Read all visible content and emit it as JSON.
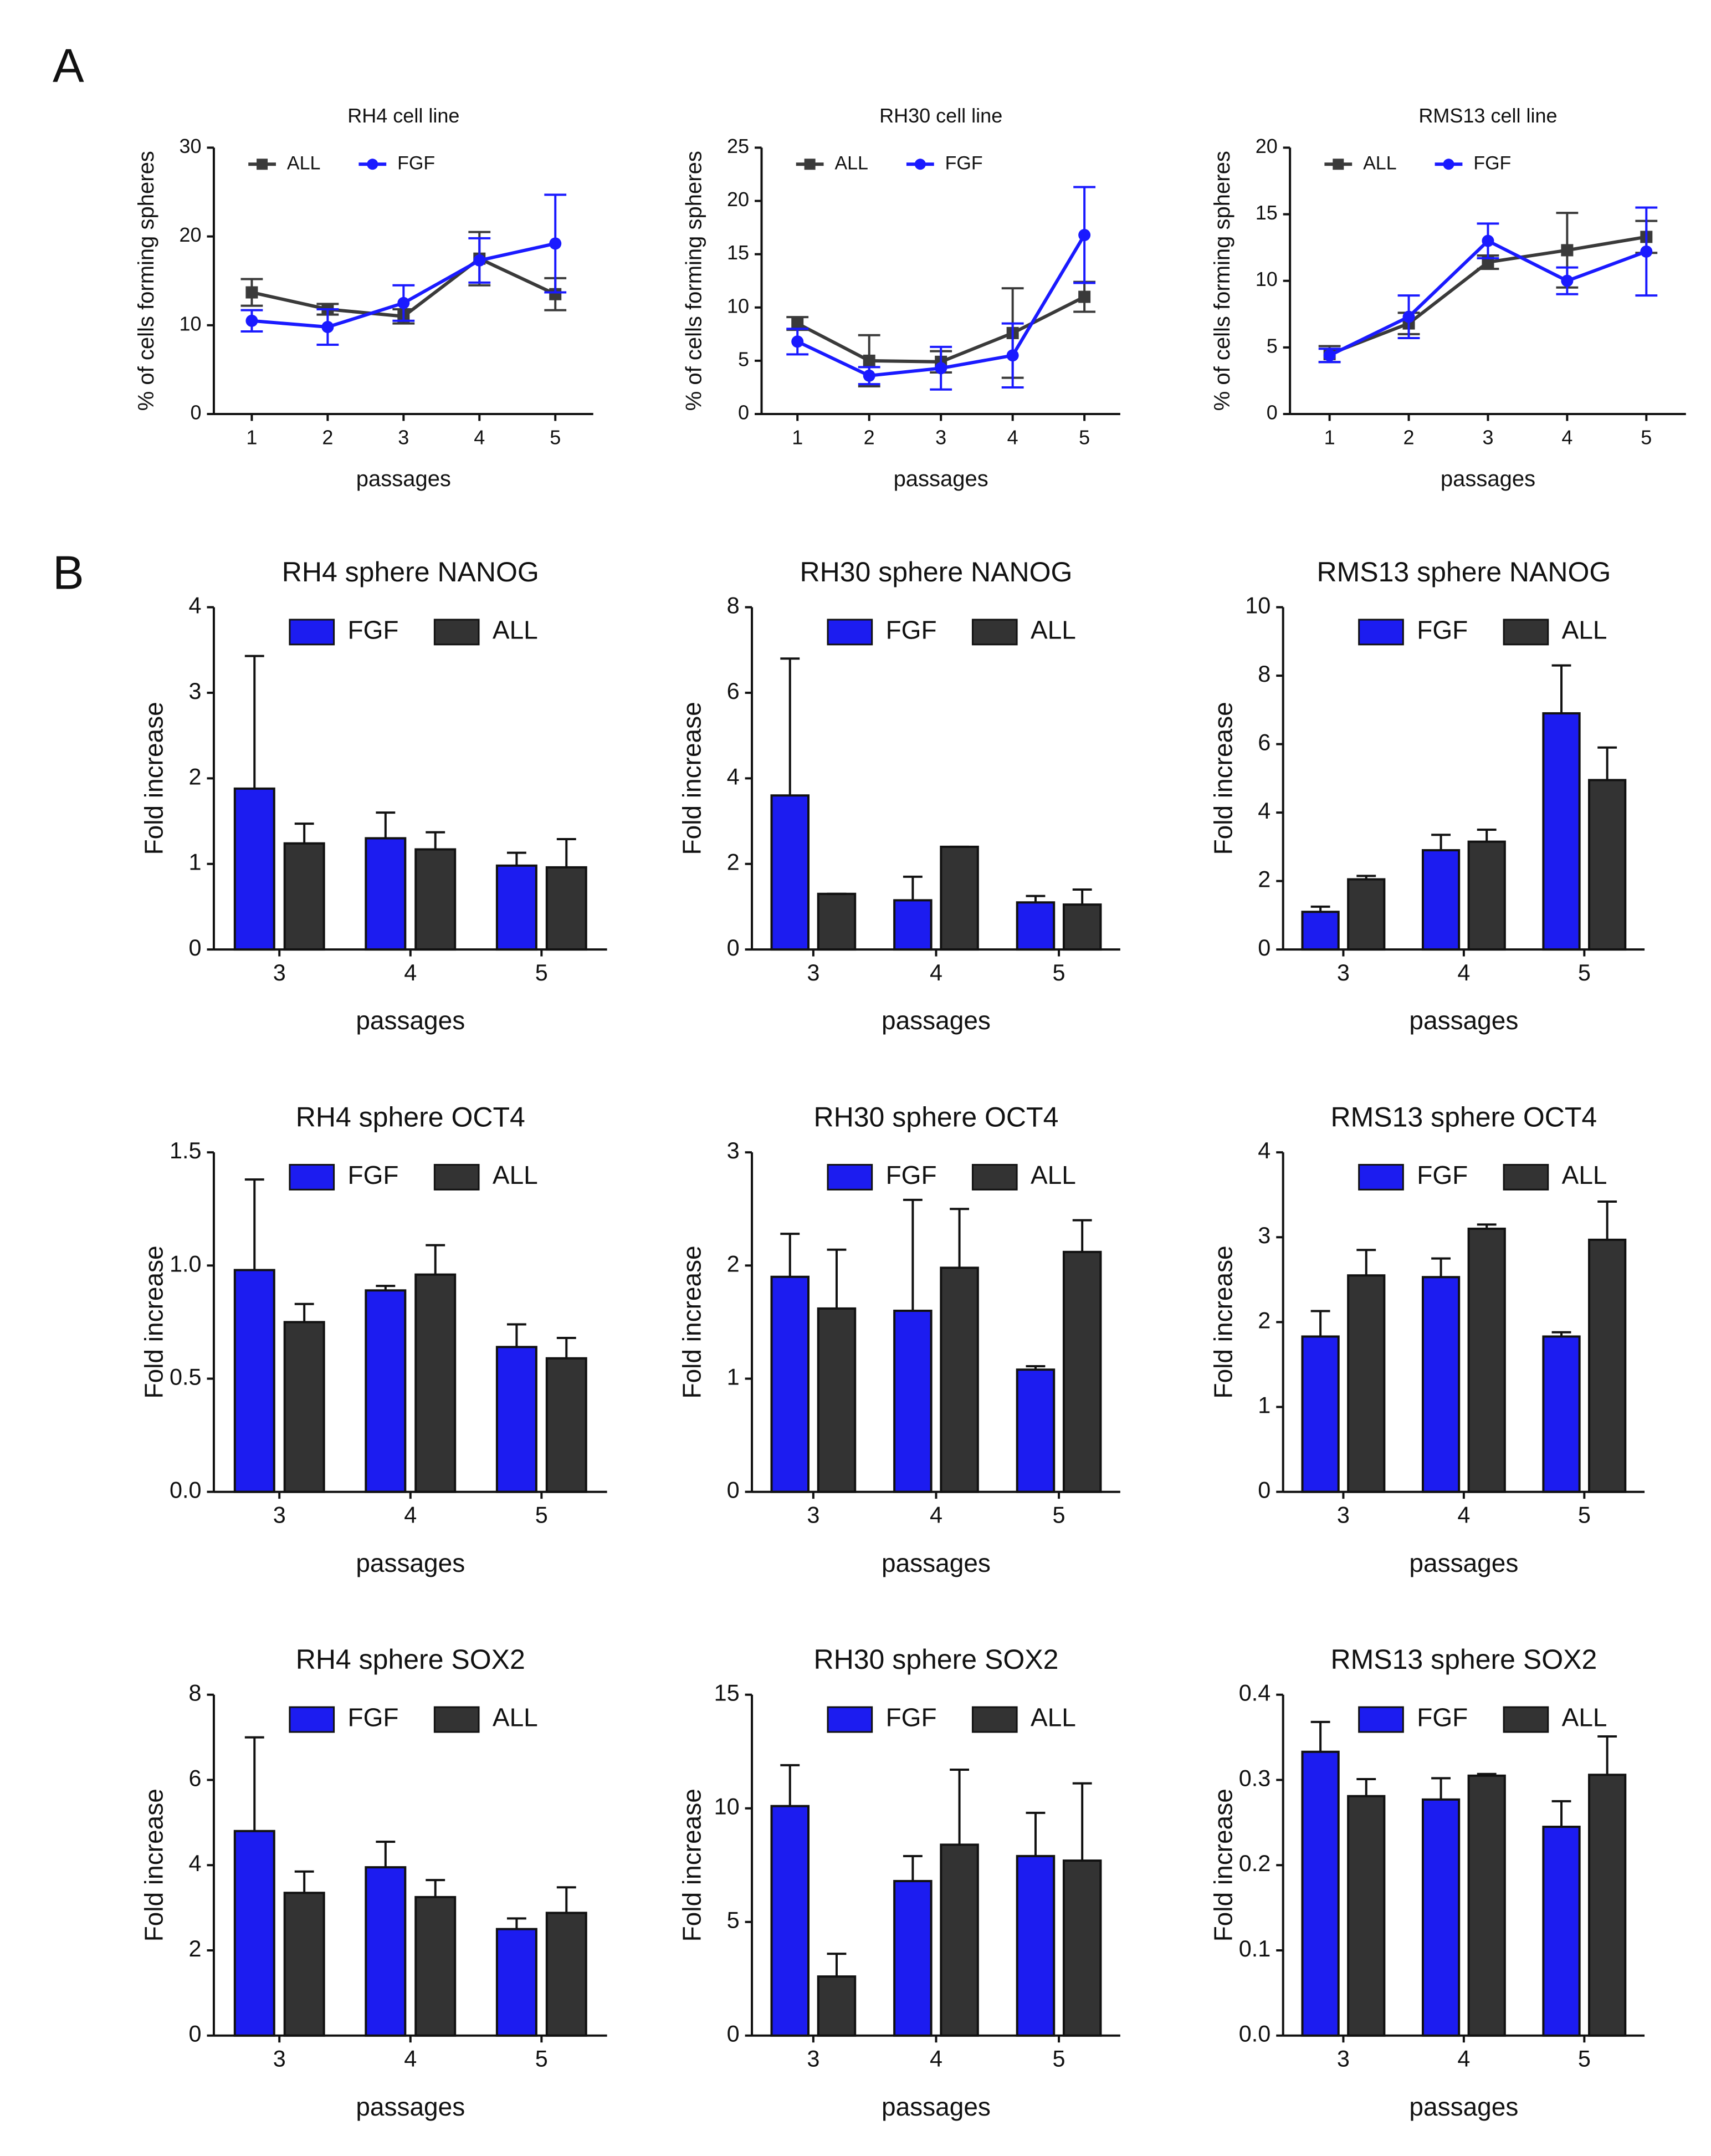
{
  "panel_labels": [
    "A",
    "B"
  ],
  "chart_data": [
    {
      "type": "line",
      "title": "RH4 cell line",
      "xlabel": "passages",
      "ylabel": "% of cells forming spheres",
      "categories": [
        "1",
        "2",
        "3",
        "4",
        "5"
      ],
      "ylim": [
        0,
        30
      ],
      "yticks": [
        0,
        10,
        20,
        30
      ],
      "series": [
        {
          "name": "ALL",
          "color": "#3a3a3a",
          "marker": "square",
          "values": [
            13.7,
            11.8,
            11,
            17.5,
            13.5
          ],
          "errors": [
            1.5,
            0.6,
            0.8,
            3,
            1.8
          ]
        },
        {
          "name": "FGF",
          "color": "#1a1aff",
          "marker": "circle",
          "values": [
            10.5,
            9.8,
            12.5,
            17.3,
            19.2
          ],
          "errors": [
            1.2,
            2,
            2,
            2.5,
            5.5
          ]
        }
      ]
    },
    {
      "type": "line",
      "title": "RH30 cell line",
      "xlabel": "passages",
      "ylabel": "% of cells forming spheres",
      "categories": [
        "1",
        "2",
        "3",
        "4",
        "5"
      ],
      "ylim": [
        0,
        25
      ],
      "yticks": [
        0,
        5,
        10,
        15,
        20,
        25
      ],
      "series": [
        {
          "name": "ALL",
          "color": "#3a3a3a",
          "marker": "square",
          "values": [
            8.5,
            5,
            4.9,
            7.6,
            11
          ],
          "errors": [
            0.6,
            2.4,
            1,
            4.2,
            1.4
          ]
        },
        {
          "name": "FGF",
          "color": "#1a1aff",
          "marker": "circle",
          "values": [
            6.8,
            3.6,
            4.3,
            5.5,
            16.8
          ],
          "errors": [
            1.2,
            0.8,
            2,
            3,
            4.5
          ]
        }
      ]
    },
    {
      "type": "line",
      "title": "RMS13 cell line",
      "xlabel": "passages",
      "ylabel": "% of cells forming spheres",
      "categories": [
        "1",
        "2",
        "3",
        "4",
        "5"
      ],
      "ylim": [
        0,
        20
      ],
      "yticks": [
        0,
        5,
        10,
        15,
        20
      ],
      "series": [
        {
          "name": "ALL",
          "color": "#3a3a3a",
          "marker": "square",
          "values": [
            4.5,
            6.8,
            11.4,
            12.3,
            13.3
          ],
          "errors": [
            0.6,
            0.8,
            0.5,
            2.8,
            1.2
          ]
        },
        {
          "name": "FGF",
          "color": "#1a1aff",
          "marker": "circle",
          "values": [
            4.4,
            7.3,
            13,
            10,
            12.2
          ],
          "errors": [
            0.5,
            1.6,
            1.3,
            1,
            3.3
          ]
        }
      ]
    },
    {
      "type": "bar",
      "title": "RH4 sphere NANOG",
      "xlabel": "passages",
      "ylabel": "Fold increase",
      "categories": [
        "3",
        "4",
        "5"
      ],
      "ylim": [
        0,
        4
      ],
      "yticks": [
        0,
        1,
        2,
        3,
        4
      ],
      "series": [
        {
          "name": "FGF",
          "color": "#1c1cf0",
          "values": [
            1.88,
            1.3,
            0.98
          ],
          "errors": [
            1.55,
            0.3,
            0.15
          ]
        },
        {
          "name": "ALL",
          "color": "#333333",
          "values": [
            1.24,
            1.17,
            0.96
          ],
          "errors": [
            0.23,
            0.2,
            0.33
          ]
        }
      ]
    },
    {
      "type": "bar",
      "title": "RH30 sphere NANOG",
      "xlabel": "passages",
      "ylabel": "Fold increase",
      "categories": [
        "3",
        "4",
        "5"
      ],
      "ylim": [
        0,
        8
      ],
      "yticks": [
        0,
        2,
        4,
        6,
        8
      ],
      "series": [
        {
          "name": "FGF",
          "color": "#1c1cf0",
          "values": [
            3.6,
            1.15,
            1.1
          ],
          "errors": [
            3.2,
            0.55,
            0.15
          ]
        },
        {
          "name": "ALL",
          "color": "#333333",
          "values": [
            1.3,
            2.4,
            1.05
          ],
          "errors": [
            0,
            0,
            0.35
          ]
        }
      ]
    },
    {
      "type": "bar",
      "title": "RMS13 sphere NANOG",
      "xlabel": "passages",
      "ylabel": "Fold increase",
      "categories": [
        "3",
        "4",
        "5"
      ],
      "ylim": [
        0,
        10
      ],
      "yticks": [
        0,
        2,
        4,
        6,
        8,
        10
      ],
      "series": [
        {
          "name": "FGF",
          "color": "#1c1cf0",
          "values": [
            1.1,
            2.9,
            6.9
          ],
          "errors": [
            0.15,
            0.45,
            1.4
          ]
        },
        {
          "name": "ALL",
          "color": "#333333",
          "values": [
            2.05,
            3.15,
            4.95
          ],
          "errors": [
            0.1,
            0.35,
            0.95
          ]
        }
      ]
    },
    {
      "type": "bar",
      "title": "RH4 sphere OCT4",
      "xlabel": "passages",
      "ylabel": "Fold increase",
      "categories": [
        "3",
        "4",
        "5"
      ],
      "ylim": [
        0,
        1.5
      ],
      "yticks": [
        {
          "value": 0,
          "label": "0.0"
        },
        {
          "value": 0.5,
          "label": "0.5"
        },
        {
          "value": 1,
          "label": "1.0"
        },
        {
          "value": 1.5,
          "label": "1.5"
        }
      ],
      "series": [
        {
          "name": "FGF",
          "color": "#1c1cf0",
          "values": [
            0.98,
            0.89,
            0.64
          ],
          "errors": [
            0.4,
            0.02,
            0.1
          ]
        },
        {
          "name": "ALL",
          "color": "#333333",
          "values": [
            0.75,
            0.96,
            0.59
          ],
          "errors": [
            0.08,
            0.13,
            0.09
          ]
        }
      ]
    },
    {
      "type": "bar",
      "title": "RH30 sphere OCT4",
      "xlabel": "passages",
      "ylabel": "Fold increase",
      "categories": [
        "3",
        "4",
        "5"
      ],
      "ylim": [
        0,
        3
      ],
      "yticks": [
        0,
        1,
        2,
        3
      ],
      "series": [
        {
          "name": "FGF",
          "color": "#1c1cf0",
          "values": [
            1.9,
            1.6,
            1.08
          ],
          "errors": [
            0.38,
            0.98,
            0.03
          ]
        },
        {
          "name": "ALL",
          "color": "#333333",
          "values": [
            1.62,
            1.98,
            2.12
          ],
          "errors": [
            0.52,
            0.52,
            0.28
          ]
        }
      ]
    },
    {
      "type": "bar",
      "title": "RMS13 sphere OCT4",
      "xlabel": "passages",
      "ylabel": "Fold increase",
      "categories": [
        "3",
        "4",
        "5"
      ],
      "ylim": [
        0,
        4
      ],
      "yticks": [
        0,
        1,
        2,
        3,
        4
      ],
      "series": [
        {
          "name": "FGF",
          "color": "#1c1cf0",
          "values": [
            1.83,
            2.53,
            1.83
          ],
          "errors": [
            0.3,
            0.22,
            0.05
          ]
        },
        {
          "name": "ALL",
          "color": "#333333",
          "values": [
            2.55,
            3.1,
            2.97
          ],
          "errors": [
            0.3,
            0.05,
            0.45
          ]
        }
      ]
    },
    {
      "type": "bar",
      "title": "RH4 sphere SOX2",
      "xlabel": "passages",
      "ylabel": "Fold increase",
      "categories": [
        "3",
        "4",
        "5"
      ],
      "ylim": [
        0,
        8
      ],
      "yticks": [
        0,
        2,
        4,
        6,
        8
      ],
      "series": [
        {
          "name": "FGF",
          "color": "#1c1cf0",
          "values": [
            4.8,
            3.95,
            2.5
          ],
          "errors": [
            2.2,
            0.6,
            0.25
          ]
        },
        {
          "name": "ALL",
          "color": "#333333",
          "values": [
            3.35,
            3.25,
            2.88
          ],
          "errors": [
            0.5,
            0.4,
            0.6
          ]
        }
      ]
    },
    {
      "type": "bar",
      "title": "RH30 sphere SOX2",
      "xlabel": "passages",
      "ylabel": "Fold increase",
      "categories": [
        "3",
        "4",
        "5"
      ],
      "ylim": [
        0,
        15
      ],
      "yticks": [
        0,
        5,
        10,
        15
      ],
      "series": [
        {
          "name": "FGF",
          "color": "#1c1cf0",
          "values": [
            10.1,
            6.8,
            7.9
          ],
          "errors": [
            1.8,
            1.1,
            1.9
          ]
        },
        {
          "name": "ALL",
          "color": "#333333",
          "values": [
            2.6,
            8.4,
            7.7
          ],
          "errors": [
            1,
            3.3,
            3.4
          ]
        }
      ]
    },
    {
      "type": "bar",
      "title": "RMS13 sphere SOX2",
      "xlabel": "passages",
      "ylabel": "Fold increase",
      "categories": [
        "3",
        "4",
        "5"
      ],
      "ylim": [
        0,
        0.4
      ],
      "yticks": [
        {
          "value": 0,
          "label": "0.0"
        },
        {
          "value": 0.1,
          "label": "0.1"
        },
        {
          "value": 0.2,
          "label": "0.2"
        },
        {
          "value": 0.3,
          "label": "0.3"
        },
        {
          "value": 0.4,
          "label": "0.4"
        }
      ],
      "series": [
        {
          "name": "FGF",
          "color": "#1c1cf0",
          "values": [
            0.333,
            0.277,
            0.245
          ],
          "errors": [
            0.035,
            0.025,
            0.03
          ]
        },
        {
          "name": "ALL",
          "color": "#333333",
          "values": [
            0.281,
            0.305,
            0.306
          ],
          "errors": [
            0.02,
            0.002,
            0.045
          ]
        }
      ]
    }
  ]
}
